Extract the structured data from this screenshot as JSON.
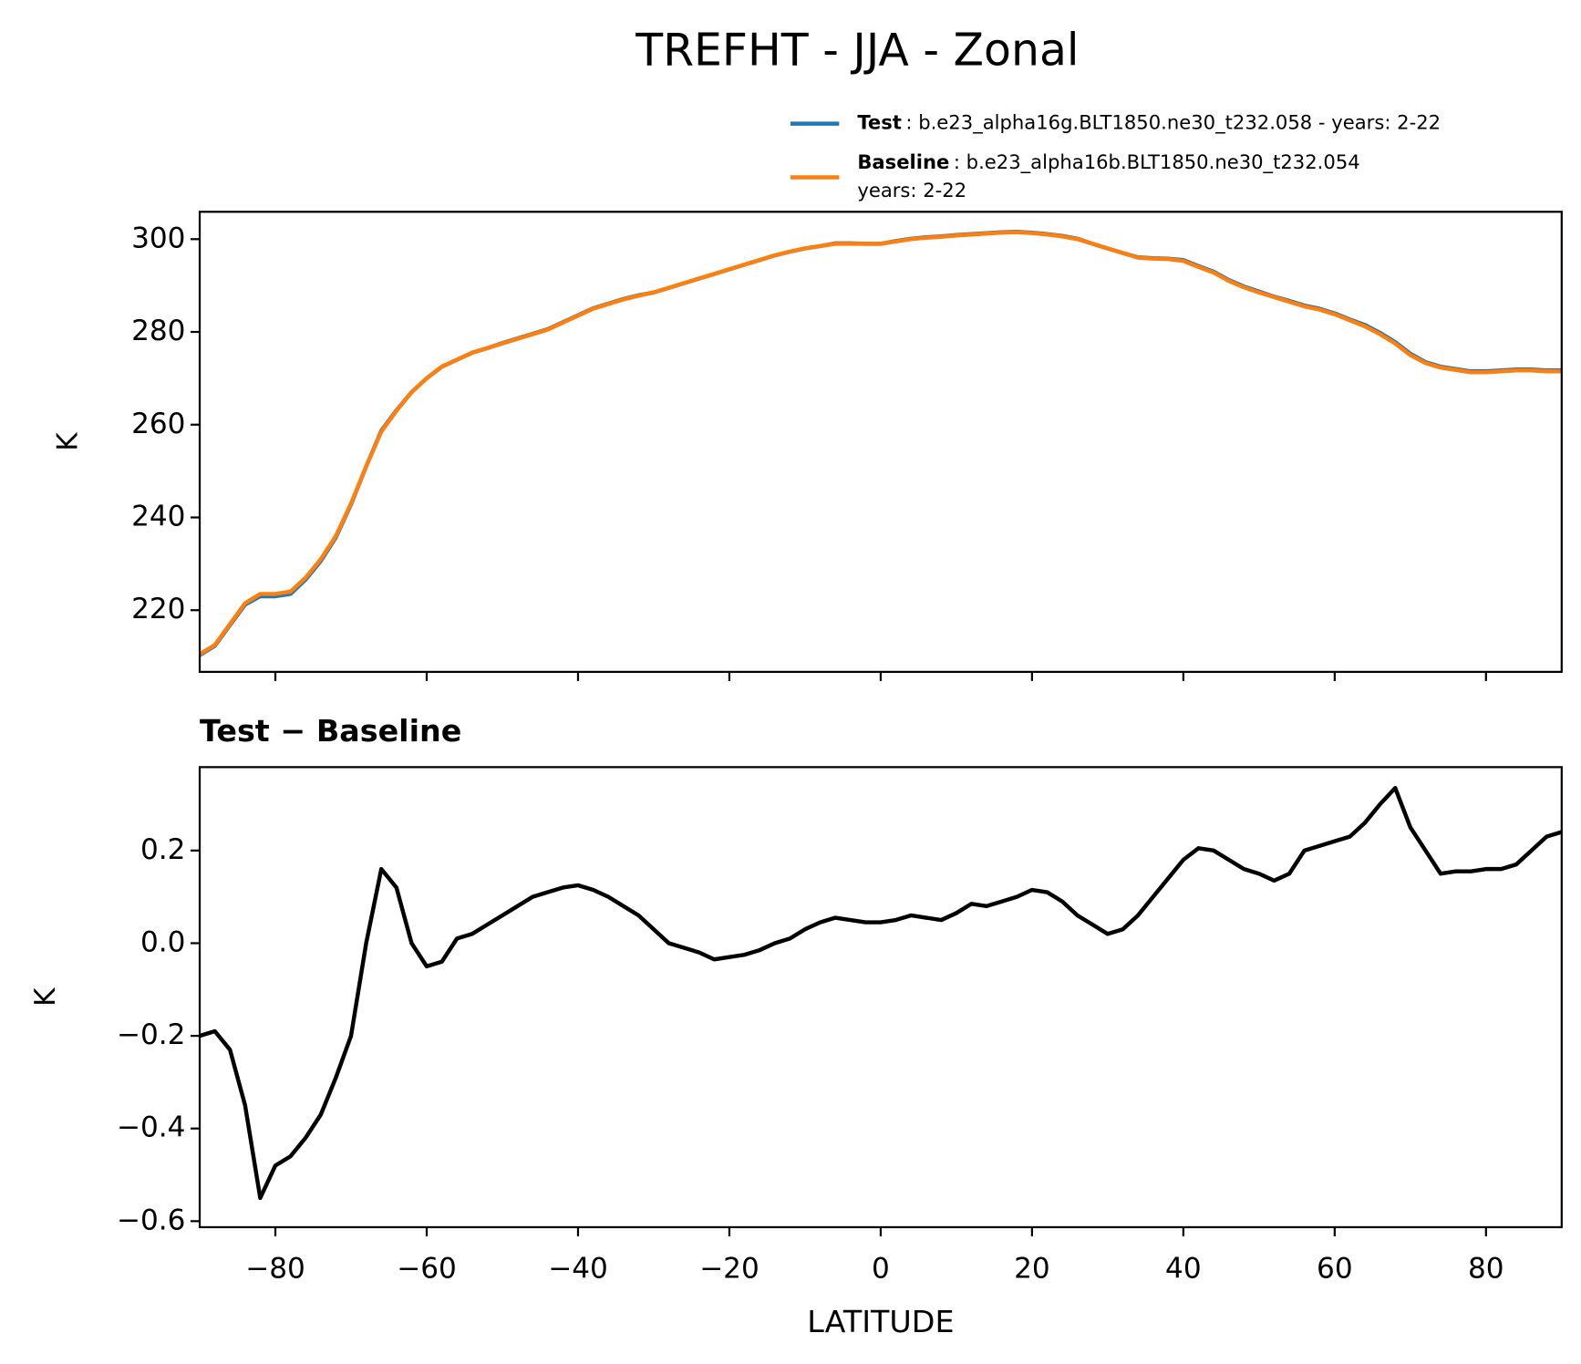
{
  "title": "TREFHT - JJA - Zonal",
  "chart_data": [
    {
      "type": "line",
      "ylabel": "K",
      "xlim": [
        -90,
        90
      ],
      "ylim": [
        206.7,
        305.9
      ],
      "xticks": [
        {
          "value": -80,
          "label": "−80"
        },
        {
          "value": -60,
          "label": "−60"
        },
        {
          "value": -40,
          "label": "−40"
        },
        {
          "value": -20,
          "label": "−20"
        },
        0,
        20,
        40,
        60,
        80
      ],
      "yticks": [
        220,
        240,
        260,
        280,
        300
      ],
      "x": [
        -90,
        -88,
        -86,
        -84,
        -82,
        -80,
        -78,
        -76,
        -74,
        -72,
        -70,
        -68,
        -66,
        -64,
        -62,
        -60,
        -58,
        -56,
        -54,
        -52,
        -50,
        -48,
        -46,
        -44,
        -42,
        -40,
        -38,
        -36,
        -34,
        -32,
        -30,
        -28,
        -26,
        -24,
        -22,
        -20,
        -18,
        -16,
        -14,
        -12,
        -10,
        -8,
        -6,
        -4,
        -2,
        0,
        2,
        4,
        6,
        8,
        10,
        12,
        14,
        16,
        18,
        20,
        22,
        24,
        26,
        28,
        30,
        32,
        34,
        36,
        38,
        40,
        42,
        44,
        46,
        48,
        50,
        52,
        54,
        56,
        58,
        60,
        62,
        64,
        66,
        68,
        70,
        72,
        74,
        76,
        78,
        80,
        82,
        84,
        86,
        88,
        90
      ],
      "series": [
        {
          "name": "Test",
          "description": [
            ": b.e23_alpha16g.BLT1850.ne30_t232.058 - years: 2-22"
          ],
          "color": "#1f77b4",
          "values": [
            210.3,
            212.3,
            216.8,
            221.2,
            223.0,
            223.0,
            223.5,
            226.6,
            230.6,
            235.7,
            242.8,
            251.0,
            258.7,
            263.1,
            267.0,
            270.0,
            272.5,
            274.0,
            275.5,
            276.5,
            277.6,
            278.6,
            279.6,
            280.6,
            282.1,
            283.6,
            285.1,
            286.1,
            287.1,
            287.9,
            288.5,
            289.5,
            290.5,
            291.5,
            292.5,
            293.5,
            294.5,
            295.5,
            296.5,
            297.3,
            298.0,
            298.5,
            299.1,
            299.1,
            299.0,
            299.0,
            299.6,
            300.1,
            300.4,
            300.6,
            300.9,
            301.1,
            301.3,
            301.5,
            301.6,
            301.4,
            301.1,
            300.7,
            300.1,
            299.0,
            298.0,
            297.0,
            296.1,
            295.9,
            295.8,
            295.5,
            294.2,
            293.0,
            291.2,
            289.8,
            288.7,
            287.6,
            286.7,
            285.7,
            285.0,
            284.0,
            282.7,
            281.5,
            279.8,
            277.8,
            275.3,
            273.5,
            272.5,
            272.0,
            271.5,
            271.5,
            271.7,
            271.9,
            271.9,
            271.7,
            271.7
          ]
        },
        {
          "name": "Baseline",
          "description": [
            ": b.e23_alpha16b.BLT1850.ne30_t232.054",
            "years: 2-22"
          ],
          "color": "#ff7f0e",
          "values": [
            210.5,
            212.5,
            217,
            221.5,
            223.5,
            223.5,
            224,
            227,
            231,
            236,
            243,
            251,
            258.5,
            263,
            267,
            270,
            272.5,
            274,
            275.5,
            276.5,
            277.5,
            278.5,
            279.5,
            280.5,
            282,
            283.5,
            285,
            286,
            287,
            287.8,
            288.5,
            289.5,
            290.5,
            291.5,
            292.5,
            293.5,
            294.5,
            295.5,
            296.5,
            297.3,
            298,
            298.5,
            299,
            299,
            299,
            299,
            299.5,
            300,
            300.3,
            300.5,
            300.8,
            301,
            301.2,
            301.4,
            301.5,
            301.3,
            301,
            300.6,
            300,
            299,
            298,
            297,
            296,
            295.8,
            295.7,
            295.3,
            294,
            292.8,
            291,
            289.6,
            288.5,
            287.5,
            286.5,
            285.5,
            284.8,
            283.8,
            282.5,
            281.2,
            279.5,
            277.5,
            275,
            273.3,
            272.3,
            271.8,
            271.3,
            271.3,
            271.5,
            271.7,
            271.7,
            271.5,
            271.5
          ]
        }
      ]
    },
    {
      "type": "line",
      "title": "Test − Baseline",
      "xlabel": "LATITUDE",
      "ylabel": "K",
      "xlim": [
        -90,
        90
      ],
      "ylim": [
        -0.613,
        0.38
      ],
      "xticks": [
        {
          "value": -80,
          "label": "−80"
        },
        {
          "value": -60,
          "label": "−60"
        },
        {
          "value": -40,
          "label": "−40"
        },
        {
          "value": -20,
          "label": "−20"
        },
        0,
        20,
        40,
        60,
        80
      ],
      "yticks": [
        {
          "value": -0.6,
          "label": "−0.6"
        },
        {
          "value": -0.4,
          "label": "−0.4"
        },
        {
          "value": -0.2,
          "label": "−0.2"
        },
        {
          "value": 0,
          "label": "0.0"
        },
        {
          "value": 0.2,
          "label": "0.2"
        }
      ],
      "x": [
        -90,
        -88,
        -86,
        -84,
        -82,
        -80,
        -78,
        -76,
        -74,
        -72,
        -70,
        -68,
        -66,
        -64,
        -62,
        -60,
        -58,
        -56,
        -54,
        -52,
        -50,
        -48,
        -46,
        -44,
        -42,
        -40,
        -38,
        -36,
        -34,
        -32,
        -30,
        -28,
        -26,
        -24,
        -22,
        -20,
        -18,
        -16,
        -14,
        -12,
        -10,
        -8,
        -6,
        -4,
        -2,
        0,
        2,
        4,
        6,
        8,
        10,
        12,
        14,
        16,
        18,
        20,
        22,
        24,
        26,
        28,
        30,
        32,
        34,
        36,
        38,
        40,
        42,
        44,
        46,
        48,
        50,
        52,
        54,
        56,
        58,
        60,
        62,
        64,
        66,
        68,
        70,
        72,
        74,
        76,
        78,
        80,
        82,
        84,
        86,
        88,
        90
      ],
      "series": [
        {
          "color": "#000000",
          "values": [
            -0.2,
            -0.19,
            -0.23,
            -0.35,
            -0.55,
            -0.48,
            -0.46,
            -0.42,
            -0.37,
            -0.29,
            -0.2,
            0.0,
            0.16,
            0.12,
            0.0,
            -0.05,
            -0.04,
            0.01,
            0.02,
            0.04,
            0.06,
            0.08,
            0.1,
            0.11,
            0.12,
            0.125,
            0.115,
            0.1,
            0.08,
            0.06,
            0.03,
            0.0,
            -0.01,
            -0.02,
            -0.035,
            -0.03,
            -0.025,
            -0.015,
            0.0,
            0.01,
            0.03,
            0.045,
            0.055,
            0.05,
            0.045,
            0.045,
            0.05,
            0.06,
            0.055,
            0.05,
            0.065,
            0.085,
            0.08,
            0.09,
            0.1,
            0.115,
            0.11,
            0.09,
            0.06,
            0.04,
            0.02,
            0.03,
            0.06,
            0.1,
            0.14,
            0.18,
            0.205,
            0.2,
            0.18,
            0.16,
            0.15,
            0.135,
            0.15,
            0.2,
            0.21,
            0.22,
            0.23,
            0.26,
            0.3,
            0.335,
            0.25,
            0.2,
            0.15,
            0.155,
            0.155,
            0.16,
            0.16,
            0.17,
            0.2,
            0.23,
            0.24
          ]
        }
      ]
    }
  ]
}
